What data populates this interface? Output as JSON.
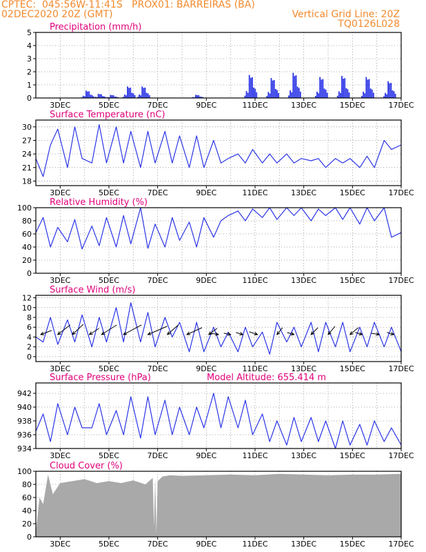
{
  "header": {
    "line1": "CPTEC:  045:56W-11:41S   PROX01: BARREIRAS (BA)",
    "line2": "02DEC2020 20Z (GMT)",
    "grid_note": "Vertical Grid Line: 20Z",
    "code": "TQ0126L028"
  },
  "colors": {
    "header": "#f28a2e",
    "title": "#e0007a",
    "line": "#2a34e6",
    "bar": "#2a34e6",
    "cloud": "#a9a9a9",
    "frame": "#000000",
    "grid": "#8c8c8c"
  },
  "chart_data": [
    {
      "type": "bar",
      "title": "Precipitation (mm/h)",
      "ylim": [
        0,
        5
      ],
      "yticks": [
        "0",
        "1",
        "2",
        "3",
        "4",
        "5"
      ],
      "xticks": [
        "3DEC",
        "5DEC",
        "7DEC",
        "9DEC",
        "11DEC",
        "13DEC",
        "15DEC",
        "17DEC"
      ],
      "bursts": [
        {
          "day": 4.1,
          "peak": 0.7
        },
        {
          "day": 4.6,
          "peak": 0.4
        },
        {
          "day": 5.1,
          "peak": 0.3
        },
        {
          "day": 5.8,
          "peak": 1.1
        },
        {
          "day": 6.4,
          "peak": 1.1
        },
        {
          "day": 8.6,
          "peak": 0.3
        },
        {
          "day": 10.8,
          "peak": 2.2
        },
        {
          "day": 11.7,
          "peak": 1.9
        },
        {
          "day": 12.6,
          "peak": 2.4
        },
        {
          "day": 13.7,
          "peak": 2.0
        },
        {
          "day": 14.6,
          "peak": 2.1
        },
        {
          "day": 15.6,
          "peak": 2.0
        },
        {
          "day": 16.5,
          "peak": 1.6
        }
      ]
    },
    {
      "type": "line",
      "title": "Surface Temperature (nC)",
      "ylim": [
        17,
        31.5
      ],
      "yticks": [
        "18",
        "21",
        "24",
        "27",
        "30"
      ],
      "xticks": [
        "3DEC",
        "5DEC",
        "7DEC",
        "9DEC",
        "11DEC",
        "13DEC",
        "15DEC",
        "17DEC"
      ],
      "x": [
        2.0,
        2.3,
        2.6,
        2.9,
        3.3,
        3.6,
        3.9,
        4.3,
        4.6,
        4.9,
        5.3,
        5.6,
        5.9,
        6.3,
        6.6,
        6.9,
        7.3,
        7.6,
        7.9,
        8.3,
        8.6,
        8.9,
        9.3,
        9.6,
        9.9,
        10.3,
        10.6,
        10.9,
        11.3,
        11.6,
        11.9,
        12.3,
        12.6,
        12.9,
        13.3,
        13.6,
        13.9,
        14.3,
        14.6,
        14.9,
        15.3,
        15.6,
        15.9,
        16.3,
        16.6,
        17.0
      ],
      "y": [
        23,
        19,
        26,
        29.5,
        21,
        30,
        23,
        22,
        30.5,
        22,
        30,
        22,
        29,
        21,
        29,
        22,
        29,
        22,
        28,
        21,
        28,
        21,
        27,
        22,
        23,
        24,
        22,
        25,
        22,
        24,
        22,
        24,
        22,
        23,
        22.5,
        23,
        21,
        23,
        22,
        23,
        21,
        23.5,
        21,
        27,
        25,
        26
      ]
    },
    {
      "type": "line",
      "title": "Relative Humidity (%)",
      "ylim": [
        0,
        100
      ],
      "yticks": [
        "0",
        "20",
        "40",
        "60",
        "80",
        "100"
      ],
      "xticks": [
        "3DEC",
        "5DEC",
        "7DEC",
        "9DEC",
        "11DEC",
        "13DEC",
        "15DEC",
        "17DEC"
      ],
      "x": [
        2.0,
        2.3,
        2.6,
        2.9,
        3.3,
        3.6,
        3.9,
        4.3,
        4.6,
        4.9,
        5.3,
        5.6,
        5.9,
        6.3,
        6.6,
        6.9,
        7.3,
        7.6,
        7.9,
        8.3,
        8.6,
        8.9,
        9.3,
        9.6,
        9.9,
        10.3,
        10.6,
        10.9,
        11.3,
        11.6,
        11.9,
        12.3,
        12.6,
        12.9,
        13.3,
        13.6,
        13.9,
        14.3,
        14.6,
        14.9,
        15.3,
        15.6,
        15.9,
        16.3,
        16.6,
        17.0
      ],
      "y": [
        62,
        85,
        40,
        70,
        48,
        82,
        37,
        72,
        42,
        85,
        40,
        88,
        45,
        100,
        38,
        75,
        40,
        85,
        50,
        78,
        40,
        85,
        55,
        80,
        88,
        95,
        80,
        98,
        85,
        100,
        82,
        100,
        88,
        100,
        80,
        98,
        88,
        100,
        82,
        100,
        75,
        100,
        80,
        100,
        55,
        62
      ]
    },
    {
      "type": "line",
      "title": "Surface Wind (m/s)",
      "ylim": [
        -1,
        12.5
      ],
      "yticks": [
        "0",
        "2",
        "4",
        "6",
        "8",
        "10",
        "12"
      ],
      "xticks": [
        "3DEC",
        "5DEC",
        "7DEC",
        "9DEC",
        "11DEC",
        "13DEC",
        "15DEC",
        "17DEC"
      ],
      "x": [
        2.0,
        2.3,
        2.6,
        2.9,
        3.3,
        3.6,
        3.9,
        4.3,
        4.6,
        4.9,
        5.3,
        5.6,
        5.9,
        6.3,
        6.6,
        6.9,
        7.3,
        7.6,
        7.9,
        8.3,
        8.6,
        8.9,
        9.3,
        9.6,
        9.9,
        10.3,
        10.6,
        10.9,
        11.3,
        11.6,
        11.9,
        12.3,
        12.6,
        12.9,
        13.3,
        13.6,
        13.9,
        14.3,
        14.6,
        14.9,
        15.3,
        15.6,
        15.9,
        16.3,
        16.6,
        17.0
      ],
      "y": [
        4,
        3,
        8,
        2.5,
        7.5,
        3,
        8.5,
        2,
        8,
        3,
        10,
        3,
        11,
        3,
        9,
        2,
        8,
        4,
        7,
        1,
        7,
        1,
        6,
        2,
        5,
        1,
        6,
        2,
        5,
        0.5,
        7,
        3,
        6,
        2,
        7,
        1,
        7,
        2,
        7,
        1,
        6,
        2,
        7,
        2,
        6,
        1
      ],
      "arrows": [
        {
          "day": 2.2,
          "dx": 16,
          "dy": -6
        },
        {
          "day": 2.9,
          "dx": 18,
          "dy": -14
        },
        {
          "day": 3.5,
          "dx": 16,
          "dy": -15
        },
        {
          "day": 4.2,
          "dx": 14,
          "dy": -9
        },
        {
          "day": 4.7,
          "dx": 22,
          "dy": -14
        },
        {
          "day": 5.6,
          "dx": 26,
          "dy": -14
        },
        {
          "day": 6.6,
          "dx": 28,
          "dy": -12
        },
        {
          "day": 7.4,
          "dx": 16,
          "dy": -14
        },
        {
          "day": 8.2,
          "dx": 22,
          "dy": -10
        },
        {
          "day": 9.1,
          "dx": 12,
          "dy": -9
        },
        {
          "day": 9.5,
          "dx": -12,
          "dy": -2
        },
        {
          "day": 10.0,
          "dx": -10,
          "dy": -2
        },
        {
          "day": 10.5,
          "dx": -10,
          "dy": -3
        },
        {
          "day": 11.1,
          "dx": -12,
          "dy": -4
        },
        {
          "day": 11.9,
          "dx": 8,
          "dy": -10
        },
        {
          "day": 12.6,
          "dx": -10,
          "dy": -3
        },
        {
          "day": 13.3,
          "dx": 10,
          "dy": -10
        },
        {
          "day": 14.0,
          "dx": 10,
          "dy": -12
        },
        {
          "day": 14.9,
          "dx": 12,
          "dy": -10
        },
        {
          "day": 15.4,
          "dx": -10,
          "dy": -3
        },
        {
          "day": 16.1,
          "dx": -12,
          "dy": -2
        },
        {
          "day": 16.7,
          "dx": -10,
          "dy": -3
        }
      ]
    },
    {
      "type": "line",
      "title": "Surface Pressure (hPa)",
      "subtitle": "Model Altitude: 655.414 m",
      "ylim": [
        934,
        943.5
      ],
      "yticks": [
        "934",
        "936",
        "938",
        "940",
        "942"
      ],
      "xticks": [
        "3DEC",
        "5DEC",
        "7DEC",
        "9DEC",
        "11DEC",
        "13DEC",
        "15DEC",
        "17DEC"
      ],
      "x": [
        2.0,
        2.3,
        2.6,
        2.9,
        3.3,
        3.6,
        3.9,
        4.3,
        4.6,
        4.9,
        5.3,
        5.6,
        5.9,
        6.3,
        6.6,
        6.9,
        7.3,
        7.6,
        7.9,
        8.3,
        8.6,
        8.9,
        9.3,
        9.6,
        9.9,
        10.3,
        10.6,
        10.9,
        11.3,
        11.6,
        11.9,
        12.3,
        12.6,
        12.9,
        13.3,
        13.6,
        13.9,
        14.3,
        14.6,
        14.9,
        15.3,
        15.6,
        15.9,
        16.3,
        16.6,
        17.0
      ],
      "y": [
        936.5,
        939,
        935,
        940.5,
        936,
        940,
        937,
        937,
        940.5,
        936,
        939.5,
        936,
        941.5,
        935.5,
        941.5,
        936,
        941,
        936,
        940,
        936,
        940,
        937,
        942,
        937,
        941.5,
        937,
        941,
        936,
        939,
        935,
        938,
        934.5,
        938.5,
        935,
        938.5,
        935,
        938,
        934,
        938,
        934.5,
        937.5,
        934.5,
        938,
        935,
        937,
        934.5
      ]
    },
    {
      "type": "area",
      "title": "Cloud Cover (%)",
      "ylim": [
        0,
        100
      ],
      "yticks": [
        "0",
        "20",
        "40",
        "60",
        "80",
        "100"
      ],
      "xticks": [
        "3DEC",
        "5DEC",
        "7DEC",
        "9DEC",
        "11DEC",
        "13DEC",
        "15DEC",
        "17DEC"
      ],
      "x": [
        2.0,
        2.15,
        2.3,
        2.5,
        2.7,
        3.0,
        3.5,
        4.0,
        4.5,
        5.0,
        5.5,
        6.0,
        6.5,
        6.8,
        6.85,
        6.9,
        6.95,
        7.0,
        7.2,
        7.5,
        8.0,
        9.0,
        10.0,
        11.0,
        12.0,
        13.0,
        14.0,
        15.0,
        16.0,
        17.0
      ],
      "y": [
        5,
        60,
        50,
        95,
        65,
        82,
        85,
        88,
        82,
        85,
        82,
        86,
        80,
        90,
        15,
        88,
        5,
        85,
        92,
        94,
        93,
        94,
        95,
        94,
        96,
        95,
        94,
        95,
        95,
        96
      ]
    }
  ]
}
